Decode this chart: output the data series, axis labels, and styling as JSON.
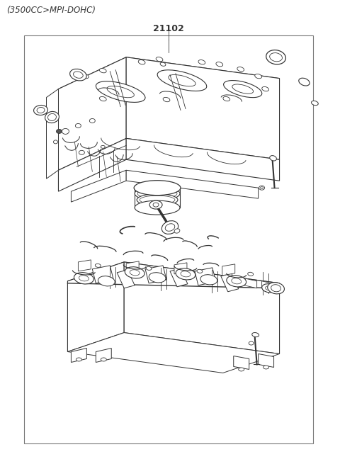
{
  "title": "(3500CC>MPI-DOHC)",
  "part_number": "21102",
  "bg_color": "#ffffff",
  "line_color": "#333333",
  "fig_width": 4.8,
  "fig_height": 6.55,
  "dpi": 100
}
